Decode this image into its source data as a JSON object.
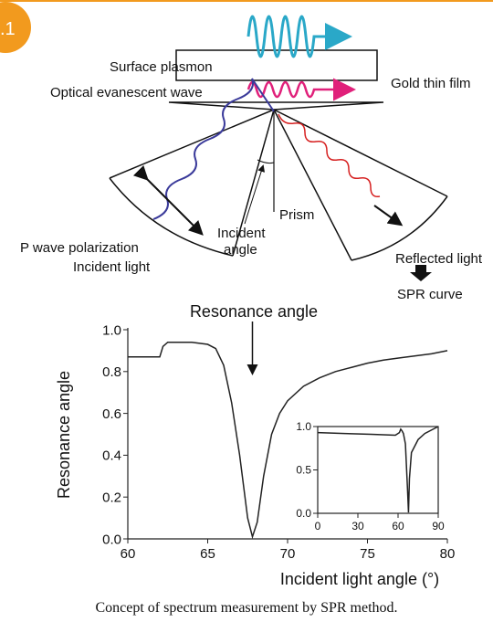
{
  "badge": ".1",
  "diagram": {
    "surface_plasmon": "Surface plasmon",
    "evanescent_wave": "Optical evanescent wave",
    "gold_film": "Gold thin film",
    "prism": "Prism",
    "incident_angle": [
      "Incident",
      "angle"
    ],
    "p_wave": "P wave polarization",
    "incident_light": "Incident light",
    "reflected_light": "Reflected light",
    "spr_curve": "SPR curve"
  },
  "chart_data": [
    {
      "type": "line",
      "annotation": {
        "text": "Resonance angle",
        "x": 67.8
      },
      "x_label": "Incident light angle (°)",
      "y_label": "Resonance angle",
      "x": [
        60,
        62,
        62.2,
        62.5,
        64,
        65,
        65.5,
        66,
        66.5,
        67,
        67.5,
        67.8,
        68.1,
        68.5,
        69,
        69.5,
        70,
        71,
        72,
        73,
        74,
        75,
        76,
        77,
        78,
        79,
        80
      ],
      "values": [
        0.87,
        0.87,
        0.92,
        0.94,
        0.94,
        0.93,
        0.91,
        0.83,
        0.65,
        0.4,
        0.1,
        0.01,
        0.08,
        0.3,
        0.5,
        0.6,
        0.66,
        0.73,
        0.77,
        0.8,
        0.82,
        0.84,
        0.855,
        0.865,
        0.875,
        0.885,
        0.9
      ],
      "color": "#222222",
      "xlim": [
        60,
        80
      ],
      "xticks": [
        60,
        65,
        70,
        75,
        80
      ],
      "ylim": [
        0,
        1
      ],
      "yticks": [
        {
          "value": 0,
          "label": "0.0"
        },
        0.2,
        0.4,
        0.6,
        0.8,
        {
          "value": 1,
          "label": "1.0"
        }
      ]
    },
    {
      "type": "line",
      "x": [
        0,
        20,
        40,
        58,
        61,
        62,
        63,
        64,
        65.5,
        67,
        67.8,
        68.5,
        70,
        75,
        80,
        90
      ],
      "values": [
        0.93,
        0.92,
        0.91,
        0.9,
        0.93,
        0.97,
        0.95,
        0.92,
        0.8,
        0.3,
        0.01,
        0.4,
        0.7,
        0.85,
        0.92,
        1.0
      ],
      "color": "#222222",
      "xlim": [
        0,
        90
      ],
      "xticks": [
        0,
        30,
        60,
        90
      ],
      "ylim": [
        0,
        1
      ],
      "yticks": [
        {
          "value": 0,
          "label": "0.0"
        },
        0.5,
        {
          "value": 1,
          "label": "1.0"
        }
      ]
    }
  ],
  "caption": "Concept of spectrum measurement by SPR method."
}
